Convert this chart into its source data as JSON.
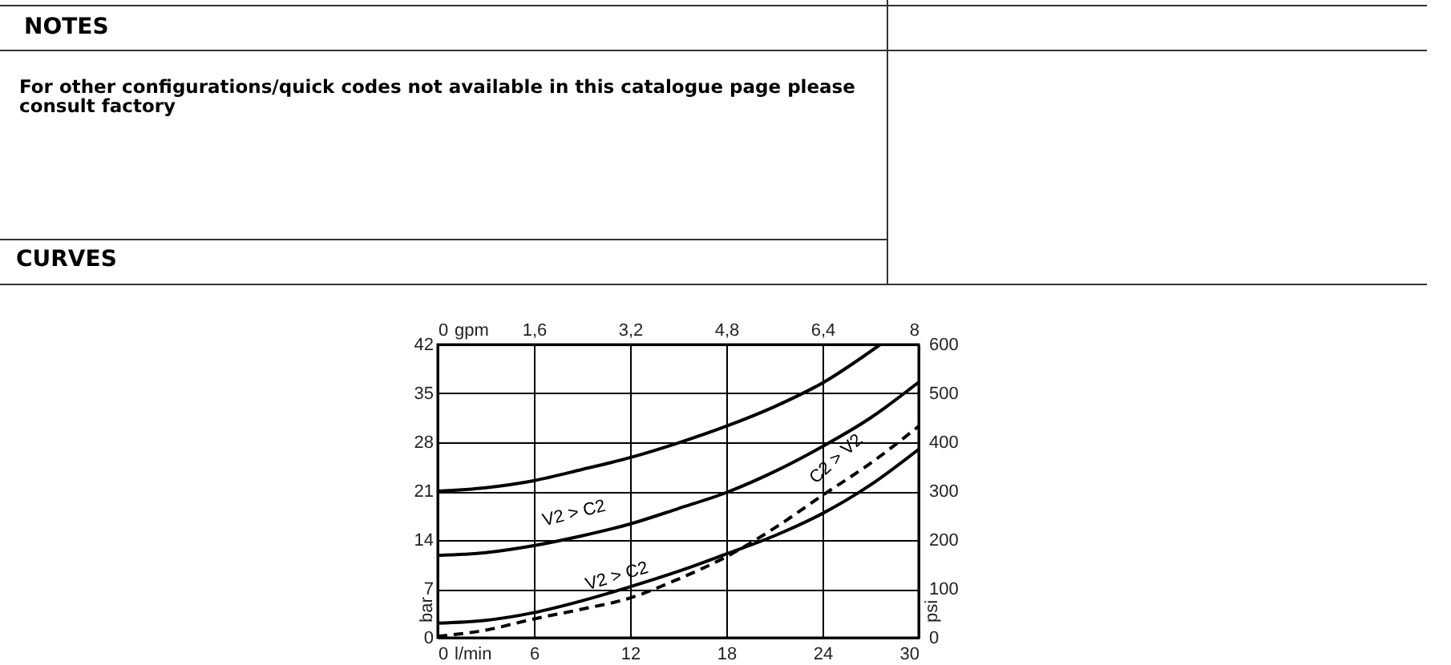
{
  "chart_data": {
    "type": "line",
    "annotations": [
      "NOTES",
      "For other configurations/quick codes not available in this catalogue page please consult factory",
      "CURVES",
      {
        "text": "V2 > C2",
        "x": 8.7,
        "y": 16
      },
      {
        "text": "V2 > C2",
        "x": 11.4,
        "y": 7
      },
      {
        "text": "C2 > V2",
        "x": 25.4,
        "y": 24.2
      }
    ],
    "xlabel": "l/min",
    "ylabel": "bar",
    "x2label": "gpm",
    "y2label": "psi",
    "xlim": [
      0,
      30
    ],
    "xticks": [
      0,
      6,
      12,
      18,
      24,
      30
    ],
    "ylim": [
      0,
      42
    ],
    "yticks": [
      0,
      7,
      14,
      21,
      28,
      35,
      42
    ],
    "x2lim": [
      0,
      8
    ],
    "x2ticks": [
      0,
      {
        "value": 1.6,
        "label": "1,6"
      },
      {
        "value": 3.2,
        "label": "3,2"
      },
      {
        "value": 4.8,
        "label": "4,8"
      },
      {
        "value": 6.4,
        "label": "6,4"
      },
      8
    ],
    "y2lim": [
      0,
      600
    ],
    "y2ticks": [
      0,
      100,
      200,
      300,
      400,
      500,
      600
    ],
    "grid": true,
    "marker": "none",
    "series": [
      {
        "color": "#000000",
        "line_style": "solid",
        "x": [
          0,
          3,
          6,
          9,
          12,
          15,
          18,
          21,
          24,
          27.6
        ],
        "values": [
          21,
          21.5,
          22.5,
          24.1,
          25.8,
          27.9,
          30.3,
          33.1,
          36.5,
          42
        ]
      },
      {
        "color": "#000000",
        "line_style": "solid",
        "x": [
          0,
          3,
          6,
          9,
          12,
          15,
          18,
          21,
          24,
          27,
          30
        ],
        "values": [
          11.8,
          12.2,
          13.2,
          14.6,
          16.3,
          18.5,
          20.8,
          23.8,
          27.4,
          31.5,
          36.6
        ]
      },
      {
        "color": "#000000",
        "line_style": "solid",
        "x": [
          0,
          3,
          6,
          9,
          12,
          15,
          18,
          21,
          24,
          27,
          30
        ],
        "values": [
          2.1,
          2.5,
          3.6,
          5.3,
          7.3,
          9.5,
          12,
          14.6,
          17.8,
          21.9,
          27
        ]
      },
      {
        "color": "#000000",
        "line_style": "dashed",
        "x": [
          0,
          3,
          6,
          9,
          12,
          15,
          18,
          21,
          24,
          27,
          30
        ],
        "values": [
          0.2,
          1.1,
          2.7,
          4.1,
          5.7,
          8.4,
          11.6,
          15.7,
          20.4,
          25,
          30.3
        ]
      }
    ]
  }
}
